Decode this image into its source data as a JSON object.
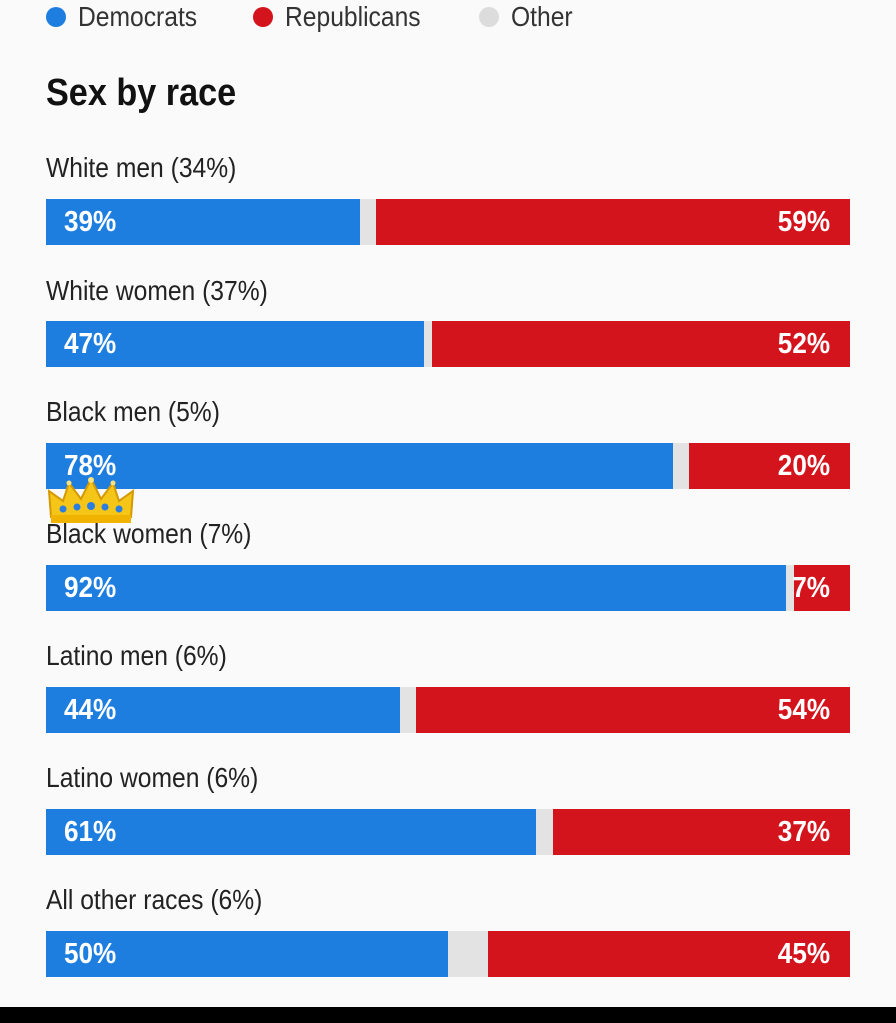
{
  "legend": [
    {
      "label": "Democrats",
      "color": "#1e7ee0"
    },
    {
      "label": "Republicans",
      "color": "#d4141c"
    },
    {
      "label": "Other",
      "color": "#dcdcdc"
    }
  ],
  "title": "Sex by race",
  "decoration": {
    "crown_icon": "crown-emoji-icon"
  },
  "chart_data": {
    "type": "bar",
    "orientation": "horizontal-stacked",
    "title": "Sex by race",
    "categories": [
      "White men (34%)",
      "White women (37%)",
      "Black men (5%)",
      "Black women (7%)",
      "Latino men (6%)",
      "Latino women (6%)",
      "All other races (6%)"
    ],
    "series": [
      {
        "name": "Democrats",
        "color": "#1e7ee0",
        "values": [
          39,
          47,
          78,
          92,
          44,
          61,
          50
        ]
      },
      {
        "name": "Republicans",
        "color": "#d4141c",
        "values": [
          59,
          52,
          20,
          7,
          54,
          37,
          45
        ]
      },
      {
        "name": "Other",
        "color": "#dcdcdc",
        "values": [
          2,
          1,
          2,
          1,
          2,
          2,
          5
        ]
      }
    ],
    "labels": {
      "dem": [
        "39%",
        "47%",
        "78%",
        "92%",
        "44%",
        "61%",
        "50%"
      ],
      "rep": [
        "59%",
        "52%",
        "20%",
        "7%",
        "54%",
        "37%",
        "45%"
      ]
    },
    "xlim": [
      0,
      100
    ],
    "legend_position": "top-left"
  }
}
